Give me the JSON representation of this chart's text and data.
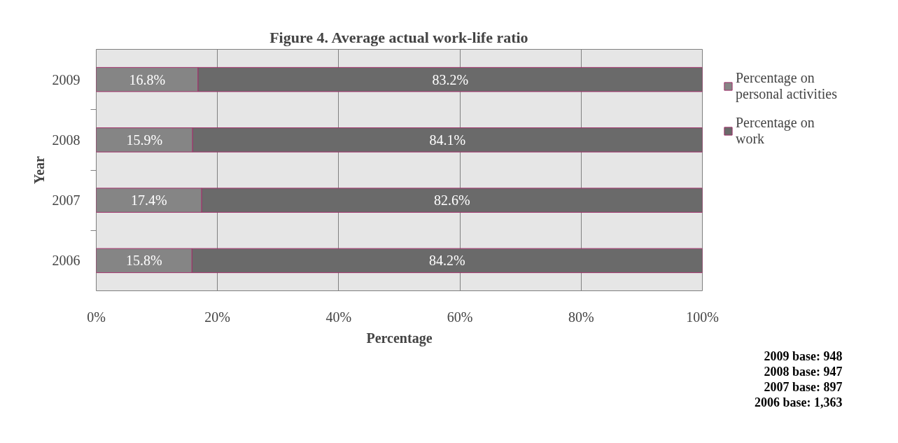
{
  "chart_data": {
    "type": "bar",
    "orientation": "horizontal",
    "stacked": true,
    "title": "Figure 4. Average actual work-life ratio",
    "xlabel": "Percentage",
    "ylabel": "Year",
    "categories": [
      "2009",
      "2008",
      "2007",
      "2006"
    ],
    "series": [
      {
        "name": "Percentage on personal activities",
        "color": "#858585",
        "values": [
          16.8,
          15.9,
          17.4,
          15.8
        ],
        "value_labels": [
          "16.8%",
          "15.9%",
          "17.4%",
          "15.8%"
        ]
      },
      {
        "name": "Percentage on work",
        "color": "#6a6a6a",
        "values": [
          83.2,
          84.1,
          82.6,
          84.2
        ],
        "value_labels": [
          "83.2%",
          "84.1%",
          "82.6%",
          "84.2%"
        ]
      }
    ],
    "xlim": [
      0,
      100
    ],
    "xticks": [
      {
        "value": 0,
        "label": "0%"
      },
      {
        "value": 20,
        "label": "20%"
      },
      {
        "value": 40,
        "label": "40%"
      },
      {
        "value": 60,
        "label": "60%"
      },
      {
        "value": 80,
        "label": "80%"
      },
      {
        "value": 100,
        "label": "100%"
      }
    ],
    "grid": "x",
    "legend": "right",
    "annotations": [
      "2009 base: 948",
      "2008 base: 947",
      "2007 base: 897",
      "2006 base: 1,363"
    ]
  }
}
